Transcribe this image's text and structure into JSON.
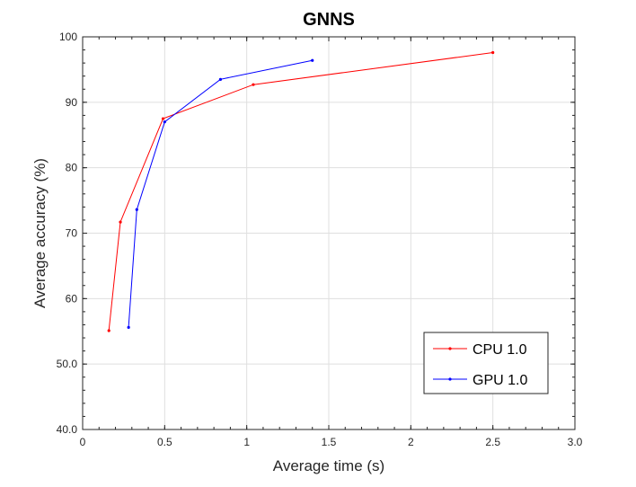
{
  "chart_data": {
    "type": "line",
    "title": "GNNS",
    "xlabel": "Average time (s)",
    "ylabel": "Average accuracy (%)",
    "xlim": [
      0,
      3.0
    ],
    "ylim": [
      40,
      100
    ],
    "grid": true,
    "legend_position": "bottom-right",
    "x_ticks": [
      {
        "value": 0,
        "label": "0"
      },
      {
        "value": 0.5,
        "label": "0.5"
      },
      {
        "value": 1,
        "label": "1"
      },
      {
        "value": 1.5,
        "label": "1.5"
      },
      {
        "value": 2,
        "label": "2"
      },
      {
        "value": 2.5,
        "label": "2.5"
      },
      {
        "value": 3,
        "label": "3.0"
      }
    ],
    "y_ticks": [
      {
        "value": 40,
        "label": "40.0"
      },
      {
        "value": 50,
        "label": "50.0"
      },
      {
        "value": 60,
        "label": "60"
      },
      {
        "value": 70,
        "label": "70"
      },
      {
        "value": 80,
        "label": "80"
      },
      {
        "value": 90,
        "label": "90"
      },
      {
        "value": 100,
        "label": "100"
      }
    ],
    "series": [
      {
        "name": "CPU 1.0",
        "color": "#ff0000",
        "x": [
          0.16,
          0.23,
          0.49,
          1.04,
          2.5
        ],
        "y": [
          55.1,
          71.7,
          87.5,
          92.7,
          97.6
        ]
      },
      {
        "name": "GPU 1.0",
        "color": "#0000ff",
        "x": [
          0.28,
          0.33,
          0.5,
          0.84,
          1.4
        ],
        "y": [
          55.6,
          73.6,
          87.0,
          93.5,
          96.4
        ]
      }
    ]
  }
}
